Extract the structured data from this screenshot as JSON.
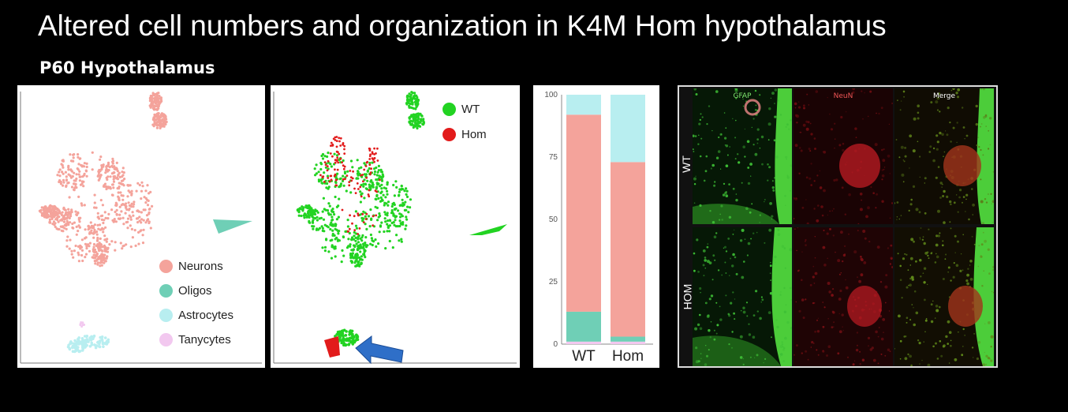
{
  "title": "Altered cell numbers and organization in K4M Hom hypothalamus",
  "subtitle": "P60 Hypothalamus",
  "colors": {
    "neurons": "#f4a39b",
    "oligos": "#6fcfb6",
    "astrocytes": "#b8eef0",
    "tanycytes": "#f2c8ef",
    "wt": "#22d322",
    "hom": "#e21b1b",
    "arrow": "#2f6fc8"
  },
  "umap_celltype": {
    "legend": [
      {
        "label": "Neurons",
        "color_key": "neurons"
      },
      {
        "label": "Oligos",
        "color_key": "oligos"
      },
      {
        "label": "Astrocytes",
        "color_key": "astrocytes"
      },
      {
        "label": "Tanycytes",
        "color_key": "tanycytes"
      }
    ]
  },
  "umap_genotype": {
    "legend": [
      {
        "label": "WT",
        "color_key": "wt"
      },
      {
        "label": "Hom",
        "color_key": "hom"
      }
    ],
    "arrow_icon": "blue-arrow-icon"
  },
  "chart_data": {
    "type": "bar",
    "stacked": true,
    "categories": [
      "WT",
      "Hom"
    ],
    "ylim": [
      0,
      100
    ],
    "yticks": [
      "0",
      "25",
      "50",
      "75",
      "100"
    ],
    "series": [
      {
        "name": "Tanycytes",
        "color_key": "tanycytes",
        "values": [
          1,
          1
        ]
      },
      {
        "name": "Oligos",
        "color_key": "oligos",
        "values": [
          12,
          2
        ]
      },
      {
        "name": "Neurons",
        "color_key": "neurons",
        "values": [
          79,
          70
        ]
      },
      {
        "name": "Astrocytes",
        "color_key": "astrocytes",
        "values": [
          8,
          27
        ]
      }
    ]
  },
  "microscopy": {
    "columns": [
      "GFAP",
      "NeuN",
      "Merge"
    ],
    "rows": [
      "WT",
      "HOM"
    ]
  }
}
